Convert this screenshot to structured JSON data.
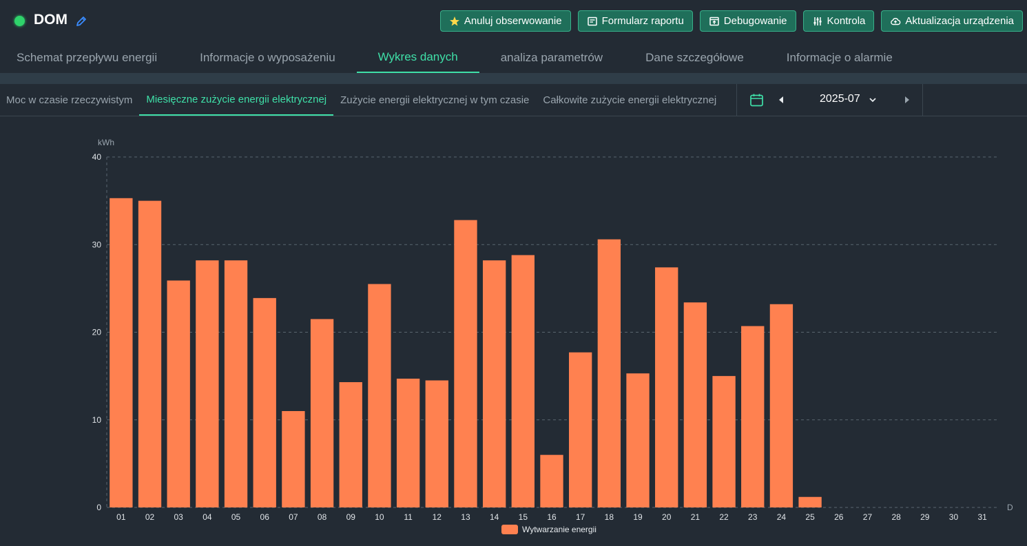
{
  "device": {
    "name": "DOM",
    "status_color": "#2fd36b"
  },
  "actions": [
    {
      "label": "Anuluj obserwowanie",
      "icon": "star-icon"
    },
    {
      "label": "Formularz raportu",
      "icon": "report-icon"
    },
    {
      "label": "Debugowanie",
      "icon": "debug-icon"
    },
    {
      "label": "Kontrola",
      "icon": "sliders-icon"
    },
    {
      "label": "Aktualizacja urządzenia",
      "icon": "cloud-upload-icon"
    }
  ],
  "main_tabs": [
    {
      "label": "Schemat przepływu energii",
      "active": false
    },
    {
      "label": "Informacje o wyposażeniu",
      "active": false
    },
    {
      "label": "Wykres danych",
      "active": true
    },
    {
      "label": "analiza parametrów",
      "active": false
    },
    {
      "label": "Dane szczegółowe",
      "active": false
    },
    {
      "label": "Informacje o alarmie",
      "active": false
    }
  ],
  "sub_tabs": [
    {
      "label": "Moc w czasie rzeczywistym",
      "active": false
    },
    {
      "label": "Miesięczne zużycie energii elektrycznej",
      "active": true
    },
    {
      "label": "Zużycie energii elektrycznej w tym czasie",
      "active": false
    },
    {
      "label": "Całkowite zużycie energii elektrycznej",
      "active": false
    }
  ],
  "date_picker": {
    "value": "2025-07"
  },
  "colors": {
    "accent": "#3fe0a8",
    "button_bg": "#1f6f5a",
    "bar": "#ff8150",
    "background": "#232b34"
  },
  "chart_data": {
    "type": "bar",
    "ylabel": "kWh",
    "xlabel": "D",
    "ylim": [
      0,
      40
    ],
    "yticks": [
      0,
      10,
      20,
      30,
      40
    ],
    "grid": true,
    "legend_position": "bottom-center",
    "categories": [
      "01",
      "02",
      "03",
      "04",
      "05",
      "06",
      "07",
      "08",
      "09",
      "10",
      "11",
      "12",
      "13",
      "14",
      "15",
      "16",
      "17",
      "18",
      "19",
      "20",
      "21",
      "22",
      "23",
      "24",
      "25",
      "26",
      "27",
      "28",
      "29",
      "30",
      "31"
    ],
    "series": [
      {
        "name": "Wytwarzanie energii",
        "color": "#ff8150",
        "values": [
          35.3,
          35.0,
          25.9,
          28.2,
          28.2,
          23.9,
          11.0,
          21.5,
          14.3,
          25.5,
          14.7,
          14.5,
          32.8,
          28.2,
          28.8,
          6.0,
          17.7,
          30.6,
          15.3,
          27.4,
          23.4,
          15.0,
          20.7,
          23.2,
          1.2,
          null,
          null,
          null,
          null,
          null,
          null
        ]
      }
    ]
  }
}
